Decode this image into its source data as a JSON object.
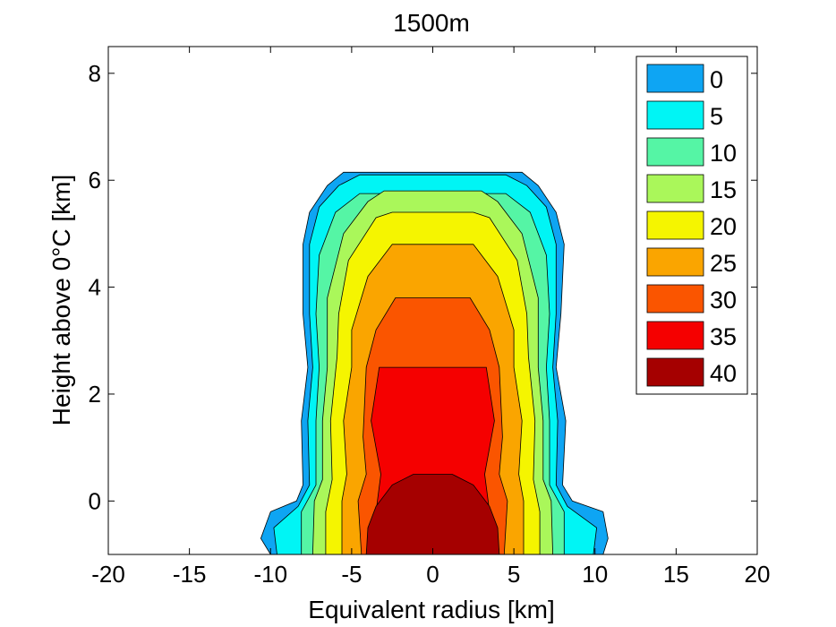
{
  "chart_data": {
    "type": "contour",
    "title": "1500m",
    "xlabel": "Equivalent radius [km]",
    "ylabel": "Height above 0°C [km]",
    "xlim": [
      -20,
      20
    ],
    "ylim": [
      -1,
      8.5
    ],
    "xticks": [
      -20,
      -15,
      -10,
      -5,
      0,
      5,
      10,
      15,
      20
    ],
    "yticks": [
      0,
      2,
      4,
      6,
      8
    ],
    "grid": false,
    "legend_position": "top-right",
    "levels": [
      {
        "label": "0",
        "color": "#0ea5f3"
      },
      {
        "label": "5",
        "color": "#00f5f5"
      },
      {
        "label": "10",
        "color": "#55f5a5"
      },
      {
        "label": "15",
        "color": "#aaf75a"
      },
      {
        "label": "20",
        "color": "#f5f500"
      },
      {
        "label": "25",
        "color": "#faa500"
      },
      {
        "label": "30",
        "color": "#fa5500"
      },
      {
        "label": "35",
        "color": "#f50000"
      },
      {
        "label": "40",
        "color": "#a50000"
      }
    ],
    "contours": [
      {
        "level": "0",
        "points": [
          [
            -10,
            -1
          ],
          [
            -10.6,
            -0.7
          ],
          [
            -10,
            -0.2
          ],
          [
            -8.4,
            0
          ],
          [
            -8,
            0.3
          ],
          [
            -8.1,
            1.5
          ],
          [
            -7.7,
            2.5
          ],
          [
            -8,
            3.5
          ],
          [
            -8,
            4.8
          ],
          [
            -7.6,
            5.4
          ],
          [
            -6.5,
            5.9
          ],
          [
            -5.5,
            6.15
          ],
          [
            5.5,
            6.15
          ],
          [
            6.5,
            5.9
          ],
          [
            7.6,
            5.4
          ],
          [
            8.1,
            4.8
          ],
          [
            7.9,
            3.5
          ],
          [
            7.6,
            2.5
          ],
          [
            8.2,
            1.5
          ],
          [
            8,
            0.3
          ],
          [
            8.6,
            0
          ],
          [
            10.5,
            -0.2
          ],
          [
            10.8,
            -0.7
          ],
          [
            10.5,
            -1
          ]
        ]
      },
      {
        "level": "5",
        "points": [
          [
            -9.6,
            -1
          ],
          [
            -9.8,
            -0.5
          ],
          [
            -8.3,
            -0.1
          ],
          [
            -7.6,
            0.3
          ],
          [
            -7.7,
            1.5
          ],
          [
            -7.4,
            2.5
          ],
          [
            -7.6,
            3.5
          ],
          [
            -7.6,
            4.8
          ],
          [
            -7,
            5.5
          ],
          [
            -5.8,
            5.9
          ],
          [
            -4.5,
            6.1
          ],
          [
            4.5,
            6.1
          ],
          [
            5.8,
            5.9
          ],
          [
            7,
            5.5
          ],
          [
            7.6,
            4.8
          ],
          [
            7.6,
            3.5
          ],
          [
            7.4,
            2.5
          ],
          [
            7.7,
            1.5
          ],
          [
            7.6,
            0.3
          ],
          [
            8.3,
            -0.1
          ],
          [
            10.1,
            -0.5
          ],
          [
            9.9,
            -1
          ]
        ]
      },
      {
        "level": "10",
        "points": [
          [
            -8.1,
            -1
          ],
          [
            -8.1,
            -0.2
          ],
          [
            -7.2,
            0.3
          ],
          [
            -7.2,
            1.5
          ],
          [
            -7,
            2.5
          ],
          [
            -7.2,
            3.5
          ],
          [
            -7,
            4.6
          ],
          [
            -6,
            5.4
          ],
          [
            -4.5,
            5.75
          ],
          [
            4.5,
            5.75
          ],
          [
            6,
            5.4
          ],
          [
            7,
            4.6
          ],
          [
            7.2,
            3.5
          ],
          [
            7,
            2.5
          ],
          [
            7.2,
            1.5
          ],
          [
            7.2,
            0.3
          ],
          [
            8.1,
            -0.2
          ],
          [
            8.1,
            -1
          ]
        ]
      },
      {
        "level": "15",
        "points": [
          [
            -7.4,
            -1
          ],
          [
            -7.3,
            0
          ],
          [
            -6.8,
            0.4
          ],
          [
            -6.8,
            1.5
          ],
          [
            -6.5,
            2.5
          ],
          [
            -6.5,
            3.8
          ],
          [
            -5.5,
            5
          ],
          [
            -4,
            5.6
          ],
          [
            -3,
            5.8
          ],
          [
            3,
            5.8
          ],
          [
            4,
            5.6
          ],
          [
            5.5,
            5
          ],
          [
            6.5,
            3.8
          ],
          [
            6.5,
            2.5
          ],
          [
            6.8,
            1.5
          ],
          [
            6.8,
            0.4
          ],
          [
            7.3,
            0
          ],
          [
            7.4,
            -1
          ]
        ]
      },
      {
        "level": "20",
        "points": [
          [
            -6.6,
            -1
          ],
          [
            -6.6,
            -0.2
          ],
          [
            -6.2,
            0.4
          ],
          [
            -6.3,
            1.5
          ],
          [
            -5.9,
            2.7
          ],
          [
            -5.8,
            3.5
          ],
          [
            -5.2,
            4.5
          ],
          [
            -3.5,
            5.3
          ],
          [
            -2.5,
            5.4
          ],
          [
            2.5,
            5.4
          ],
          [
            3.5,
            5.3
          ],
          [
            5.2,
            4.5
          ],
          [
            5.8,
            3.5
          ],
          [
            5.9,
            2.7
          ],
          [
            6.3,
            1.5
          ],
          [
            6.2,
            0.4
          ],
          [
            6.6,
            -0.2
          ],
          [
            6.6,
            -1
          ]
        ]
      },
      {
        "level": "25",
        "points": [
          [
            -5.6,
            -1
          ],
          [
            -5.6,
            0
          ],
          [
            -5.3,
            0.5
          ],
          [
            -5.5,
            1.5
          ],
          [
            -5,
            2.5
          ],
          [
            -5,
            3.2
          ],
          [
            -4,
            4.2
          ],
          [
            -2.5,
            4.8
          ],
          [
            2.5,
            4.8
          ],
          [
            4,
            4.2
          ],
          [
            5,
            3.2
          ],
          [
            5,
            2.5
          ],
          [
            5.5,
            1.5
          ],
          [
            5.3,
            0.5
          ],
          [
            5.6,
            0
          ],
          [
            5.6,
            -1
          ]
        ]
      },
      {
        "level": "30",
        "points": [
          [
            -4.4,
            -1
          ],
          [
            -4.6,
            0
          ],
          [
            -4.1,
            0.5
          ],
          [
            -4.3,
            1.2
          ],
          [
            -4.1,
            2.5
          ],
          [
            -3.5,
            3.2
          ],
          [
            -2.3,
            3.8
          ],
          [
            2.3,
            3.8
          ],
          [
            3.5,
            3.2
          ],
          [
            4.1,
            2.5
          ],
          [
            4.3,
            1.2
          ],
          [
            4.1,
            0.5
          ],
          [
            4.6,
            0
          ],
          [
            4.4,
            -1
          ]
        ]
      },
      {
        "level": "35",
        "points": [
          [
            -4.1,
            -1
          ],
          [
            -4,
            -0.7
          ],
          [
            -3.5,
            -0.2
          ],
          [
            -3.2,
            0.5
          ],
          [
            -3.8,
            1.5
          ],
          [
            -3.3,
            2.5
          ],
          [
            -2.5,
            2.5
          ],
          [
            2.5,
            2.5
          ],
          [
            3.3,
            2.5
          ],
          [
            3.8,
            1.5
          ],
          [
            3.2,
            0.5
          ],
          [
            3.5,
            -0.2
          ],
          [
            4,
            -0.7
          ],
          [
            4.1,
            -1
          ]
        ]
      },
      {
        "level": "40",
        "points": [
          [
            -4.1,
            -1
          ],
          [
            -4,
            -0.5
          ],
          [
            -3.5,
            -0.1
          ],
          [
            -2.5,
            0.3
          ],
          [
            -1.2,
            0.5
          ],
          [
            1.2,
            0.5
          ],
          [
            2.5,
            0.3
          ],
          [
            3.5,
            -0.1
          ],
          [
            4,
            -0.5
          ],
          [
            4.1,
            -1
          ]
        ]
      }
    ]
  }
}
